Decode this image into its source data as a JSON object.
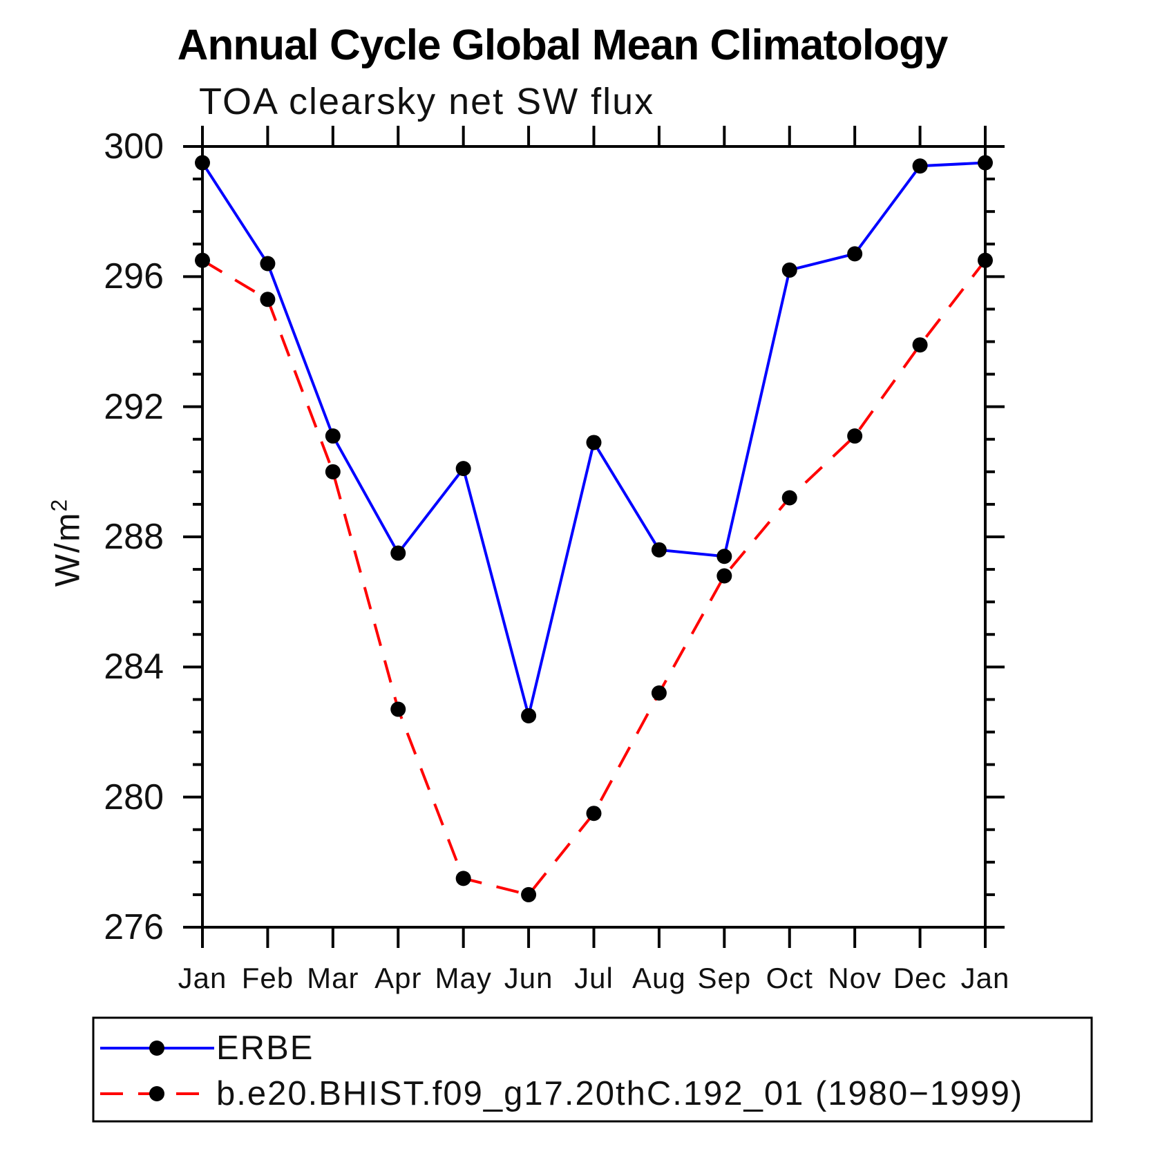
{
  "header": {
    "title": "Annual Cycle Global Mean Climatology",
    "subtitle": "TOA clearsky net SW flux"
  },
  "chart_data": {
    "type": "line",
    "title": "Annual Cycle Global Mean Climatology",
    "subtitle": "TOA clearsky net SW flux",
    "xlabel": "",
    "ylabel": "W/m²",
    "ylabel_parts": {
      "base": "W/m",
      "sup": "2"
    },
    "categories": [
      "Jan",
      "Feb",
      "Mar",
      "Apr",
      "May",
      "Jun",
      "Jul",
      "Aug",
      "Sep",
      "Oct",
      "Nov",
      "Dec",
      "Jan"
    ],
    "series": [
      {
        "name": "ERBE",
        "color": "#0000ff",
        "line_style": "solid",
        "marker": "black-dot",
        "values": [
          299.5,
          296.4,
          291.1,
          287.5,
          290.1,
          282.5,
          290.9,
          287.6,
          287.4,
          296.2,
          296.7,
          299.4,
          299.5
        ]
      },
      {
        "name": "b.e20.BHIST.f09_g17.20thC.192_01 (1980−1999)",
        "color": "#ff0000",
        "line_style": "dashed",
        "marker": "black-dot",
        "values": [
          296.5,
          295.3,
          290.0,
          282.7,
          277.5,
          277.0,
          279.5,
          283.2,
          286.8,
          289.2,
          291.1,
          293.9,
          296.5
        ]
      }
    ],
    "ylim": [
      276,
      300
    ],
    "ytick_major": [
      276,
      280,
      284,
      288,
      292,
      296,
      300
    ],
    "ytick_minor_step": 1,
    "grid": false,
    "legend_position": "bottom",
    "marker_color": "#000000",
    "axis_color": "#000000"
  }
}
